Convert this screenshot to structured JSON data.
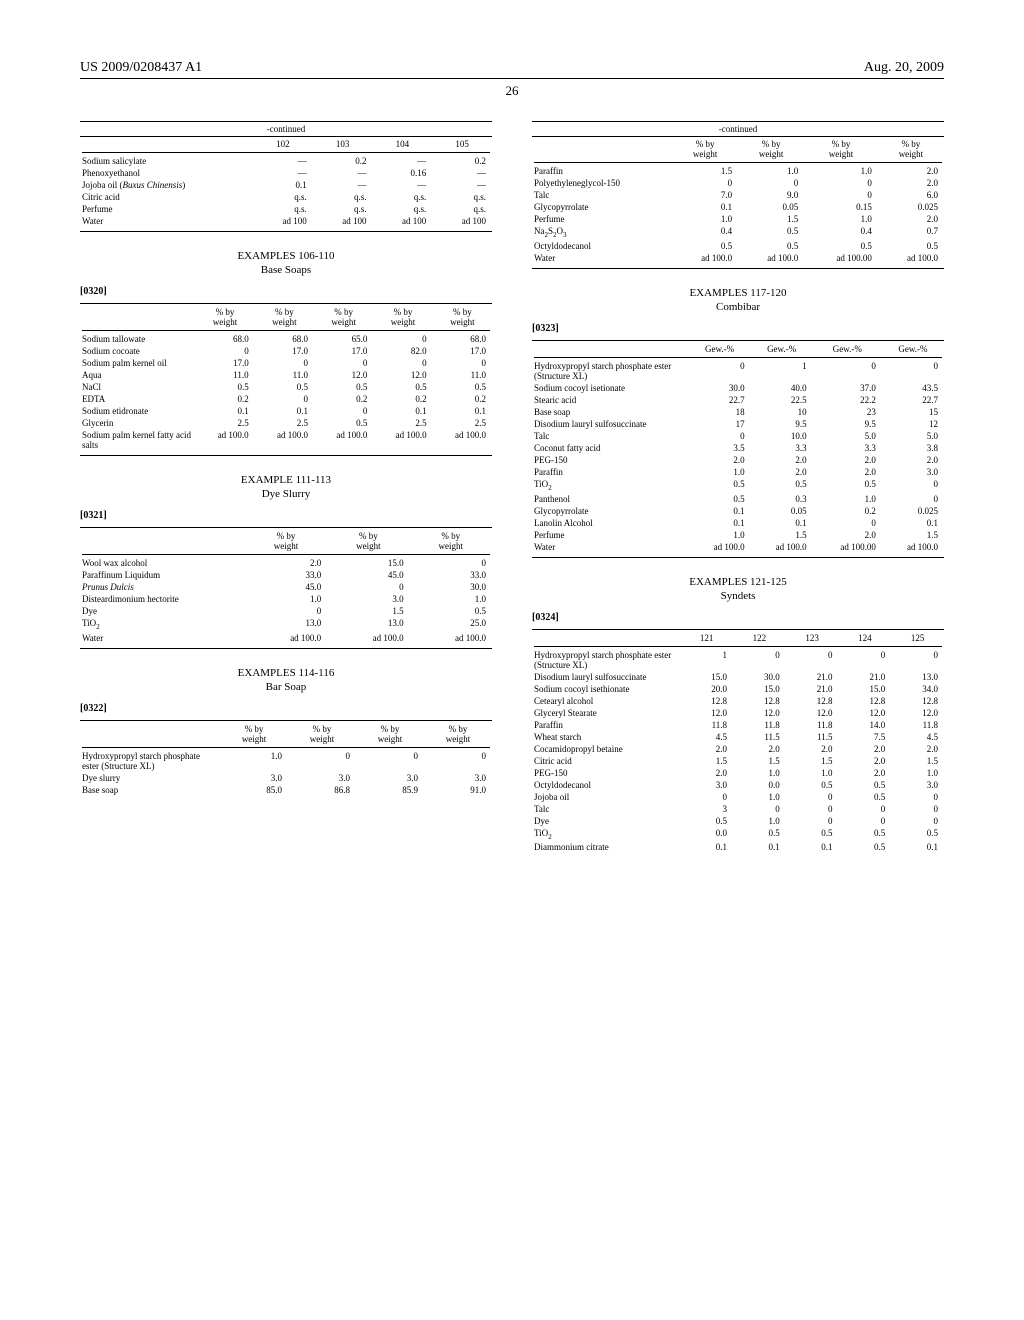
{
  "header": {
    "left": "US 2009/0208437 A1",
    "right": "Aug. 20, 2009"
  },
  "page_number": "26",
  "table_top_left": {
    "continued": "-continued",
    "headers": [
      "102",
      "103",
      "104",
      "105"
    ],
    "rows": [
      [
        "Sodium salicylate",
        "—",
        "0.2",
        "—",
        "0.2"
      ],
      [
        "Phenoxyethanol",
        "—",
        "—",
        "0.16",
        "—"
      ],
      [
        "Jojoba oil (<i>Buxus Chinensis</i>)",
        "0.1",
        "—",
        "—",
        "—"
      ],
      [
        "Citric acid",
        "q.s.",
        "q.s.",
        "q.s.",
        "q.s."
      ],
      [
        "Perfume",
        "q.s.",
        "q.s.",
        "q.s.",
        "q.s."
      ],
      [
        "Water",
        "ad 100",
        "ad 100",
        "ad 100",
        "ad 100"
      ]
    ]
  },
  "sec106": {
    "title": "EXAMPLES 106-110",
    "sub": "Base Soaps",
    "para": "[0320]"
  },
  "table106": {
    "headers": [
      "% by weight",
      "% by weight",
      "% by weight",
      "% by weight",
      "% by weight"
    ],
    "rows": [
      [
        "Sodium tallowate",
        "68.0",
        "68.0",
        "65.0",
        "0",
        "68.0"
      ],
      [
        "Sodium cocoate",
        "0",
        "17.0",
        "17.0",
        "82.0",
        "17.0"
      ],
      [
        "Sodium palm kernel oil",
        "17.0",
        "0",
        "0",
        "0",
        "0"
      ],
      [
        "Aqua",
        "11.0",
        "11.0",
        "12.0",
        "12.0",
        "11.0"
      ],
      [
        "NaCl",
        "0.5",
        "0.5",
        "0.5",
        "0.5",
        "0.5"
      ],
      [
        "EDTA",
        "0.2",
        "0",
        "0.2",
        "0.2",
        "0.2"
      ],
      [
        "Sodium etidronate",
        "0.1",
        "0.1",
        "0",
        "0.1",
        "0.1"
      ],
      [
        "Glycerin",
        "2.5",
        "2.5",
        "0.5",
        "2.5",
        "2.5"
      ],
      [
        "Sodium palm kernel fatty acid salts",
        "ad 100.0",
        "ad 100.0",
        "ad 100.0",
        "ad 100.0",
        "ad 100.0"
      ]
    ]
  },
  "sec111": {
    "title": "EXAMPLE 111-113",
    "sub": "Dye Slurry",
    "para": "[0321]"
  },
  "table111": {
    "headers": [
      "% by weight",
      "% by weight",
      "% by weight"
    ],
    "rows": [
      [
        "Wool wax alcohol",
        "2.0",
        "15.0",
        "0"
      ],
      [
        "Paraffinum Liquidum",
        "33.0",
        "45.0",
        "33.0"
      ],
      [
        "<i>Prunus Dulcis</i>",
        "45.0",
        "0",
        "30.0"
      ],
      [
        "Disteardimonium hectorite",
        "1.0",
        "3.0",
        "1.0"
      ],
      [
        "Dye",
        "0",
        "1.5",
        "0.5"
      ],
      [
        "TiO<sub>2</sub>",
        "13.0",
        "13.0",
        "25.0"
      ],
      [
        "Water",
        "ad 100.0",
        "ad 100.0",
        "ad 100.0"
      ]
    ]
  },
  "sec114": {
    "title": "EXAMPLES 114-116",
    "sub": "Bar Soap",
    "para": "[0322]"
  },
  "table114": {
    "headers": [
      "% by weight",
      "% by weight",
      "% by weight",
      "% by weight"
    ],
    "rows": [
      [
        "Hydroxypropyl starch phosphate ester (Structure XL)",
        "1.0",
        "0",
        "0",
        "0"
      ],
      [
        "Dye slurry",
        "3.0",
        "3.0",
        "3.0",
        "3.0"
      ],
      [
        "Base soap",
        "85.0",
        "86.8",
        "85.9",
        "91.0"
      ]
    ]
  },
  "table_top_right": {
    "continued": "-continued",
    "headers": [
      "% by weight",
      "% by weight",
      "% by weight",
      "% by weight"
    ],
    "rows": [
      [
        "Paraffin",
        "1.5",
        "1.0",
        "1.0",
        "2.0"
      ],
      [
        "Polyethyleneglycol-150",
        "0",
        "0",
        "0",
        "2.0"
      ],
      [
        "Talc",
        "7.0",
        "9.0",
        "0",
        "6.0"
      ],
      [
        "Glycopyrrolate",
        "0.1",
        "0.05",
        "0.15",
        "0.025"
      ],
      [
        "Perfume",
        "1.0",
        "1.5",
        "1.0",
        "2.0"
      ],
      [
        "Na<sub>2</sub>S<sub>2</sub>O<sub>3</sub>",
        "0.4",
        "0.5",
        "0.4",
        "0.7"
      ],
      [
        "Octyldodecanol",
        "0.5",
        "0.5",
        "0.5",
        "0.5"
      ],
      [
        "Water",
        "ad 100.0",
        "ad 100.0",
        "ad 100.00",
        "ad 100.0"
      ]
    ]
  },
  "sec117": {
    "title": "EXAMPLES 117-120",
    "sub": "Combibar",
    "para": "[0323]"
  },
  "table117": {
    "headers": [
      "Gew.-%",
      "Gew.-%",
      "Gew.-%",
      "Gew.-%"
    ],
    "rows": [
      [
        "Hydroxypropyl starch phosphate ester (Structure XL)",
        "0",
        "1",
        "0",
        "0"
      ],
      [
        "Sodium cocoyl isetionate",
        "30.0",
        "40.0",
        "37.0",
        "43.5"
      ],
      [
        "Stearic acid",
        "22.7",
        "22.5",
        "22.2",
        "22.7"
      ],
      [
        "Base soap",
        "18",
        "10",
        "23",
        "15"
      ],
      [
        "Disodium lauryl sulfosuccinate",
        "17",
        "9.5",
        "9.5",
        "12"
      ],
      [
        "Talc",
        "0",
        "10.0",
        "5.0",
        "5.0"
      ],
      [
        "Coconut fatty acid",
        "3.5",
        "3.3",
        "3.3",
        "3.8"
      ],
      [
        "PEG-150",
        "2.0",
        "2.0",
        "2.0",
        "2.0"
      ],
      [
        "Paraffin",
        "1.0",
        "2.0",
        "2.0",
        "3.0"
      ],
      [
        "TiO<sub>2</sub>",
        "0.5",
        "0.5",
        "0.5",
        "0"
      ],
      [
        "Panthenol",
        "0.5",
        "0.3",
        "1.0",
        "0"
      ],
      [
        "Glycopyrrolate",
        "0.1",
        "0.05",
        "0.2",
        "0.025"
      ],
      [
        "Lanolin Alcohol",
        "0.1",
        "0.1",
        "0",
        "0.1"
      ],
      [
        "Perfume",
        "1.0",
        "1.5",
        "2.0",
        "1.5"
      ],
      [
        "Water",
        "ad 100.0",
        "ad 100.0",
        "ad 100.00",
        "ad 100.0"
      ]
    ]
  },
  "sec121": {
    "title": "EXAMPLES 121-125",
    "sub": "Syndets",
    "para": "[0324]"
  },
  "table121": {
    "headers": [
      "121",
      "122",
      "123",
      "124",
      "125"
    ],
    "rows": [
      [
        "Hydroxypropyl starch phosphate ester (Structure XL)",
        "1",
        "0",
        "0",
        "0",
        "0"
      ],
      [
        "Disodium lauryl sulfosuccinate",
        "15.0",
        "30.0",
        "21.0",
        "21.0",
        "13.0"
      ],
      [
        "Sodium cocoyl isethionate",
        "20.0",
        "15.0",
        "21.0",
        "15.0",
        "34.0"
      ],
      [
        "Cetearyl alcohol",
        "12.8",
        "12.8",
        "12.8",
        "12.8",
        "12.8"
      ],
      [
        "Glyceryl Stearate",
        "12.0",
        "12.0",
        "12.0",
        "12.0",
        "12.0"
      ],
      [
        "Paraffin",
        "11.8",
        "11.8",
        "11.8",
        "14.0",
        "11.8"
      ],
      [
        "Wheat starch",
        "4.5",
        "11.5",
        "11.5",
        "7.5",
        "4.5"
      ],
      [
        "Cocamidopropyl betaine",
        "2.0",
        "2.0",
        "2.0",
        "2.0",
        "2.0"
      ],
      [
        "Citric acid",
        "1.5",
        "1.5",
        "1.5",
        "2.0",
        "1.5"
      ],
      [
        "PEG-150",
        "2.0",
        "1.0",
        "1.0",
        "2.0",
        "1.0"
      ],
      [
        "Octyldodecanol",
        "3.0",
        "0.0",
        "0.5",
        "0.5",
        "3.0"
      ],
      [
        "Jojoba oil",
        "0",
        "1.0",
        "0",
        "0.5",
        "0"
      ],
      [
        "Talc",
        "3",
        "0",
        "0",
        "0",
        "0"
      ],
      [
        "Dye",
        "0.5",
        "1.0",
        "0",
        "0",
        "0"
      ],
      [
        "TiO<sub>2</sub>",
        "0.0",
        "0.5",
        "0.5",
        "0.5",
        "0.5"
      ],
      [
        "Diammonium citrate",
        "0.1",
        "0.1",
        "0.1",
        "0.5",
        "0.1"
      ]
    ]
  }
}
